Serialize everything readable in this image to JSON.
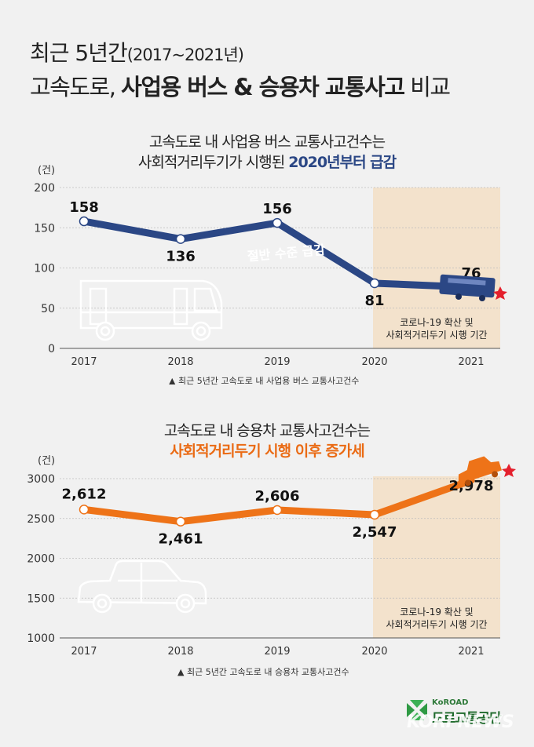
{
  "header": {
    "line1": "최근 5년간",
    "line1_years": "(2017~2021년)",
    "line2_pre": "고속도로, ",
    "line2_bold": "사업용 버스 & 승용차 교통사고",
    "line2_post": " 비교"
  },
  "chart_data": [
    {
      "type": "line",
      "title_line1": "고속도로 내 사업용 버스 교통사고건수는",
      "title_line2_pre": "사회적거리두기가 시행된 ",
      "title_line2_accent": "2020년부터 급감",
      "unit_label": "(건)",
      "categories": [
        "2017",
        "2018",
        "2019",
        "2020",
        "2021"
      ],
      "values": [
        158,
        136,
        156,
        81,
        76
      ],
      "value_labels": [
        "158",
        "136",
        "156",
        "81",
        "76"
      ],
      "yticks": [
        "200",
        "150",
        "100",
        "50",
        "0"
      ],
      "ylim": [
        0,
        200
      ],
      "color": "#2b4785",
      "annotation": "절반 수준 급감",
      "shaded_period_line1": "코로나-19 확산 및",
      "shaded_period_line2": "사회적거리두기 시행 기간",
      "caption": "▲ 최근 5년간 고속도로 내 사업용 버스 교통사고건수"
    },
    {
      "type": "line",
      "title_line1": "고속도로 내 승용차 교통사고건수는",
      "title_line2_accent": "사회적거리두기 시행 이후 증가세",
      "unit_label": "(건)",
      "categories": [
        "2017",
        "2018",
        "2019",
        "2020",
        "2021"
      ],
      "values": [
        2612,
        2461,
        2606,
        2547,
        2978
      ],
      "value_labels": [
        "2,612",
        "2,461",
        "2,606",
        "2,547",
        "2,978"
      ],
      "yticks": [
        "3000",
        "2500",
        "2000",
        "1500",
        "1000"
      ],
      "ylim": [
        1000,
        3000
      ],
      "color": "#ee7318",
      "shaded_period_line1": "코로나-19 확산 및",
      "shaded_period_line2": "사회적거리두기 시행 기간",
      "caption": "▲ 최근 5년간 고속도로 내 승용차 교통사고건수"
    }
  ],
  "logo": {
    "en": "KoROAD",
    "ko": "도로교통공단"
  },
  "watermark": "KORI NEWS",
  "colors": {
    "bus": "#2b4785",
    "car": "#ee7318",
    "shade": "#f3e2cc",
    "star": "#e4202d"
  }
}
